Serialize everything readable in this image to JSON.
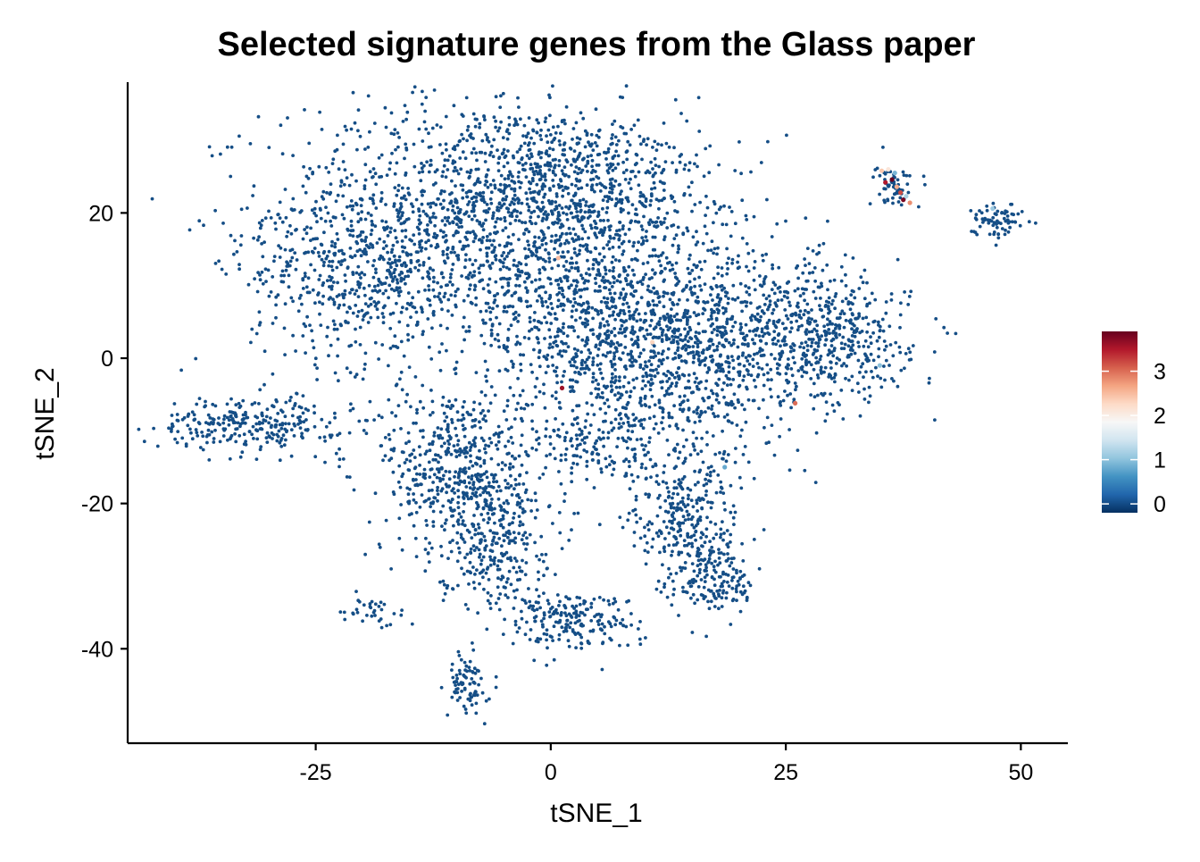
{
  "chart_data": {
    "type": "scatter",
    "title": "Selected signature genes from the Glass paper",
    "xlabel": "tSNE_1",
    "ylabel": "tSNE_2",
    "xlim": [
      -45,
      55
    ],
    "ylim": [
      -53,
      38
    ],
    "xticks": [
      -25,
      0,
      25,
      50
    ],
    "xtick_labels": [
      "-25",
      "0",
      "25",
      "50"
    ],
    "yticks": [
      -40,
      -20,
      0,
      20
    ],
    "ytick_labels": [
      "-40",
      "-20",
      "0",
      "20"
    ],
    "grid": false,
    "legend": {
      "type": "continuous colorbar",
      "position": "right",
      "min": -0.2,
      "max": 3.9,
      "ticks": [
        0,
        1,
        2,
        3
      ],
      "tick_labels": [
        "0",
        "1",
        "2",
        "3"
      ],
      "colors": [
        "#053061",
        "#2166ac",
        "#4393c3",
        "#92c5de",
        "#d1e5f0",
        "#f7f7f7",
        "#fddbc7",
        "#f4a582",
        "#d6604d",
        "#b2182b",
        "#67001f"
      ]
    },
    "point_color_low": "#154e86",
    "clusters": [
      {
        "x": -8,
        "y": 20,
        "sx": 11,
        "sy": 8,
        "n": 1200
      },
      {
        "x": -20,
        "y": 11,
        "sx": 6,
        "sy": 6,
        "n": 450
      },
      {
        "x": 3,
        "y": 24,
        "sx": 7,
        "sy": 5,
        "n": 500
      },
      {
        "x": 5,
        "y": 6,
        "sx": 8,
        "sy": 7,
        "n": 800
      },
      {
        "x": 20,
        "y": 4,
        "sx": 8,
        "sy": 6,
        "n": 700
      },
      {
        "x": 30,
        "y": 2,
        "sx": 4,
        "sy": 4,
        "n": 300
      },
      {
        "x": 13,
        "y": -3,
        "sx": 6,
        "sy": 5,
        "n": 350
      },
      {
        "x": -32,
        "y": -9,
        "sx": 5,
        "sy": 1.8,
        "n": 280
      },
      {
        "x": -10,
        "y": -15,
        "sx": 4,
        "sy": 6,
        "n": 500
      },
      {
        "x": -6,
        "y": -25,
        "sx": 3,
        "sy": 5,
        "n": 300
      },
      {
        "x": 2,
        "y": -36,
        "sx": 3.5,
        "sy": 2,
        "n": 200
      },
      {
        "x": 14,
        "y": -22,
        "sx": 3,
        "sy": 5,
        "n": 300
      },
      {
        "x": 18,
        "y": -30,
        "sx": 2,
        "sy": 3,
        "n": 150
      },
      {
        "x": 5,
        "y": -12,
        "sx": 4,
        "sy": 3,
        "n": 150
      },
      {
        "x": -9,
        "y": -45,
        "sx": 1,
        "sy": 2.2,
        "n": 80
      },
      {
        "x": -19,
        "y": -35,
        "sx": 2,
        "sy": 1,
        "n": 35
      },
      {
        "x": 36.5,
        "y": 24,
        "sx": 1,
        "sy": 1.5,
        "n": 60
      },
      {
        "x": 47.5,
        "y": 19,
        "sx": 1.3,
        "sy": 1.2,
        "n": 70
      }
    ],
    "highlighted_points": [
      {
        "x": 35.2,
        "y": 25.8,
        "value": 2.4
      },
      {
        "x": 35.6,
        "y": 24.2,
        "value": 3.5
      },
      {
        "x": 36.1,
        "y": 25.1,
        "value": 1.8
      },
      {
        "x": 36.8,
        "y": 23.6,
        "value": 2.6
      },
      {
        "x": 37.2,
        "y": 22.8,
        "value": 3.2
      },
      {
        "x": 37.5,
        "y": 21.8,
        "value": 3.8
      },
      {
        "x": 36.3,
        "y": 24.6,
        "value": 3.9
      },
      {
        "x": 35.9,
        "y": 26.0,
        "value": 2.1
      },
      {
        "x": 37.8,
        "y": 22.3,
        "value": 1.2
      },
      {
        "x": 36.6,
        "y": 25.5,
        "value": 0.9
      },
      {
        "x": 38.2,
        "y": 21.4,
        "value": 2.8
      },
      {
        "x": 10.8,
        "y": 2.2,
        "value": 2.3
      },
      {
        "x": 1.2,
        "y": -4.1,
        "value": 3.6
      },
      {
        "x": 26.0,
        "y": -6.2,
        "value": 3.0
      },
      {
        "x": 0.8,
        "y": 13.8,
        "value": 2.5
      },
      {
        "x": 47.0,
        "y": 20.6,
        "value": 1.1
      },
      {
        "x": 35.0,
        "y": -1.0,
        "value": 1.0
      },
      {
        "x": 18.5,
        "y": -15.0,
        "value": 0.8
      }
    ]
  }
}
